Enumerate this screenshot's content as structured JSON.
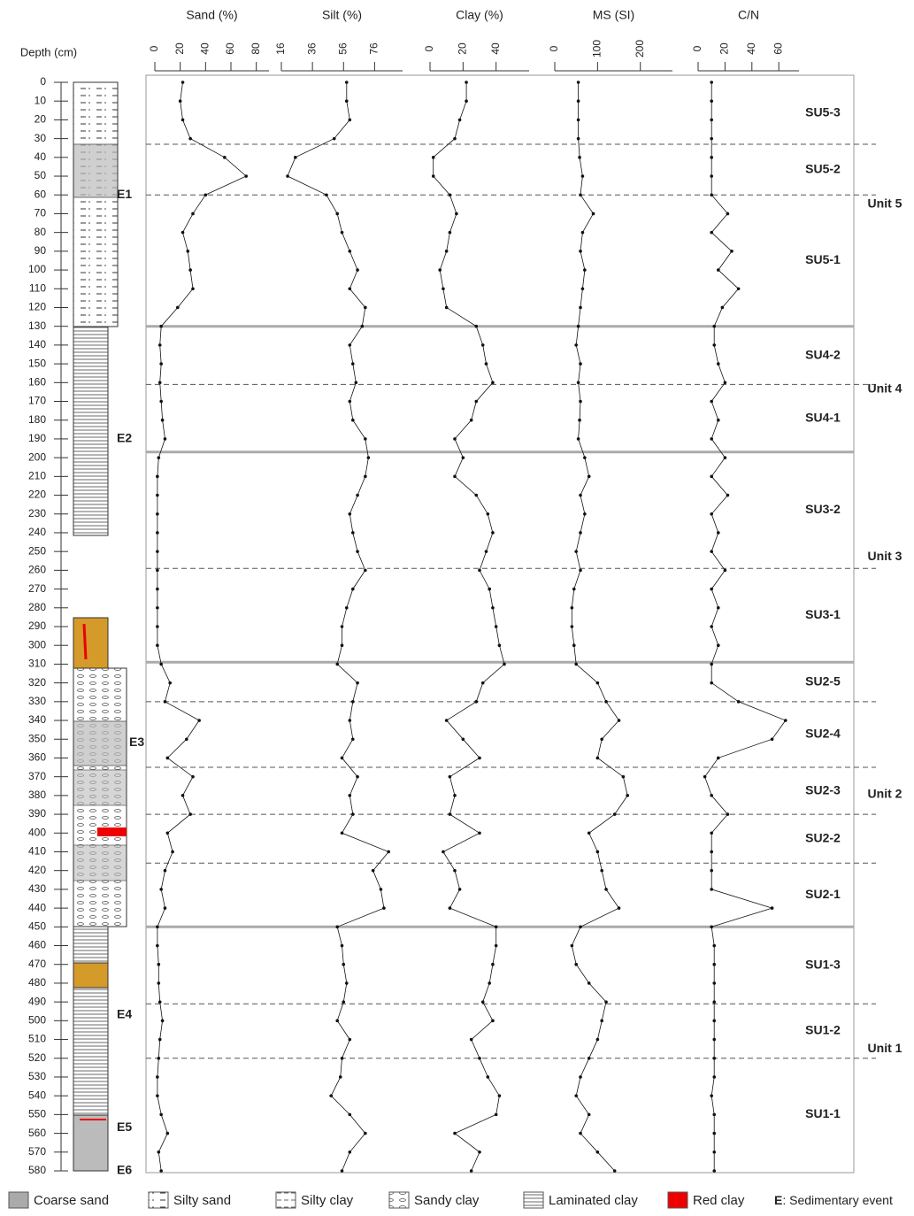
{
  "depth_axis": {
    "label": "Depth (cm)",
    "ylim": [
      0,
      580
    ],
    "yticks": [
      0,
      10,
      20,
      30,
      40,
      50,
      60,
      70,
      80,
      90,
      100,
      110,
      120,
      130,
      140,
      150,
      160,
      170,
      180,
      190,
      200,
      210,
      220,
      230,
      240,
      250,
      260,
      270,
      280,
      290,
      300,
      310,
      320,
      330,
      340,
      350,
      360,
      370,
      380,
      390,
      400,
      410,
      420,
      430,
      440,
      450,
      460,
      470,
      480,
      490,
      500,
      510,
      520,
      530,
      540,
      550,
      560,
      570,
      580
    ]
  },
  "chart_data": [
    {
      "type": "line",
      "xlabel": "Sand (%)",
      "xlim": [
        0,
        90
      ],
      "xticks": [
        0,
        20,
        40,
        60,
        80
      ],
      "color": "#111",
      "y": [
        0,
        10,
        20,
        30,
        40,
        50,
        60,
        70,
        80,
        90,
        100,
        110,
        120,
        130,
        140,
        150,
        160,
        170,
        180,
        190,
        200,
        210,
        220,
        230,
        240,
        250,
        260,
        270,
        280,
        290,
        300,
        310,
        320,
        330,
        340,
        350,
        360,
        370,
        380,
        390,
        400,
        410,
        420,
        430,
        440,
        450,
        460,
        470,
        480,
        490,
        500,
        510,
        520,
        530,
        540,
        550,
        560,
        570,
        580
      ],
      "values": [
        22,
        20,
        22,
        28,
        55,
        72,
        40,
        30,
        22,
        26,
        28,
        30,
        18,
        5,
        4,
        5,
        4,
        5,
        6,
        8,
        3,
        2,
        2,
        2,
        2,
        2,
        2,
        2,
        2,
        2,
        2,
        5,
        12,
        8,
        35,
        25,
        10,
        30,
        22,
        28,
        10,
        14,
        8,
        5,
        8,
        2,
        2,
        3,
        3,
        4,
        6,
        4,
        3,
        2,
        2,
        5,
        10,
        3,
        5
      ]
    },
    {
      "type": "line",
      "xlabel": "Silt (%)",
      "xlim": [
        16,
        94
      ],
      "xticks": [
        16,
        36,
        56,
        76
      ],
      "color": "#111",
      "y": [
        0,
        10,
        20,
        30,
        40,
        50,
        60,
        70,
        80,
        90,
        100,
        110,
        120,
        130,
        140,
        150,
        160,
        170,
        180,
        190,
        200,
        210,
        220,
        230,
        240,
        250,
        260,
        270,
        280,
        290,
        300,
        310,
        320,
        330,
        340,
        350,
        360,
        370,
        380,
        390,
        400,
        410,
        420,
        430,
        440,
        450,
        460,
        470,
        480,
        490,
        500,
        510,
        520,
        530,
        540,
        550,
        560,
        570,
        580
      ],
      "values": [
        58,
        58,
        60,
        50,
        25,
        20,
        45,
        52,
        55,
        60,
        65,
        60,
        70,
        68,
        60,
        62,
        64,
        60,
        62,
        70,
        72,
        70,
        65,
        60,
        62,
        65,
        70,
        62,
        58,
        55,
        55,
        52,
        65,
        62,
        60,
        62,
        55,
        65,
        60,
        62,
        55,
        85,
        75,
        80,
        82,
        52,
        55,
        56,
        58,
        56,
        52,
        60,
        55,
        54,
        48,
        60,
        70,
        60,
        55
      ]
    },
    {
      "type": "line",
      "xlabel": "Clay (%)",
      "xlim": [
        0,
        60
      ],
      "xticks": [
        0,
        20,
        40
      ],
      "color": "#111",
      "y": [
        0,
        10,
        20,
        30,
        40,
        50,
        60,
        70,
        80,
        90,
        100,
        110,
        120,
        130,
        140,
        150,
        160,
        170,
        180,
        190,
        200,
        210,
        220,
        230,
        240,
        250,
        260,
        270,
        280,
        290,
        300,
        310,
        320,
        330,
        340,
        350,
        360,
        370,
        380,
        390,
        400,
        410,
        420,
        430,
        440,
        450,
        460,
        470,
        480,
        490,
        500,
        510,
        520,
        530,
        540,
        550,
        560,
        570,
        580
      ],
      "values": [
        22,
        22,
        18,
        15,
        2,
        2,
        12,
        16,
        12,
        10,
        6,
        8,
        10,
        28,
        32,
        34,
        38,
        28,
        25,
        15,
        20,
        15,
        28,
        35,
        38,
        34,
        30,
        36,
        38,
        40,
        42,
        45,
        32,
        28,
        10,
        20,
        30,
        12,
        15,
        12,
        30,
        8,
        15,
        18,
        12,
        40,
        40,
        38,
        36,
        32,
        38,
        25,
        30,
        35,
        42,
        40,
        15,
        30,
        25
      ]
    },
    {
      "type": "line",
      "xlabel": "MS (SI)",
      "xlim": [
        0,
        275
      ],
      "xticks": [
        0,
        100,
        200
      ],
      "color": "#111",
      "y": [
        0,
        10,
        20,
        30,
        40,
        50,
        60,
        70,
        80,
        90,
        100,
        110,
        120,
        130,
        140,
        150,
        160,
        170,
        180,
        190,
        200,
        210,
        220,
        230,
        240,
        250,
        260,
        270,
        280,
        290,
        300,
        310,
        320,
        330,
        340,
        350,
        360,
        370,
        380,
        390,
        400,
        410,
        420,
        430,
        440,
        450,
        460,
        470,
        480,
        490,
        500,
        510,
        520,
        530,
        540,
        550,
        560,
        570,
        580
      ],
      "values": [
        55,
        55,
        55,
        55,
        58,
        65,
        60,
        90,
        65,
        60,
        70,
        65,
        60,
        55,
        50,
        60,
        55,
        60,
        58,
        55,
        70,
        80,
        60,
        70,
        60,
        50,
        60,
        45,
        40,
        40,
        45,
        50,
        100,
        120,
        150,
        110,
        100,
        160,
        170,
        140,
        80,
        100,
        110,
        120,
        150,
        60,
        40,
        50,
        80,
        120,
        110,
        100,
        80,
        60,
        50,
        80,
        60,
        100,
        140
      ]
    },
    {
      "type": "line",
      "xlabel": "C/N",
      "xlim": [
        0,
        75
      ],
      "xticks": [
        0,
        20,
        40,
        60
      ],
      "color": "#111",
      "y": [
        0,
        10,
        20,
        30,
        40,
        50,
        60,
        70,
        80,
        90,
        100,
        110,
        120,
        130,
        140,
        150,
        160,
        170,
        180,
        190,
        200,
        210,
        220,
        230,
        240,
        250,
        260,
        270,
        280,
        290,
        300,
        310,
        320,
        330,
        340,
        350,
        360,
        370,
        380,
        390,
        400,
        410,
        420,
        430,
        440,
        450,
        460,
        470,
        480,
        490,
        500,
        510,
        520,
        530,
        540,
        550,
        560,
        570,
        580
      ],
      "values": [
        10,
        10,
        10,
        10,
        10,
        10,
        10,
        22,
        10,
        25,
        15,
        30,
        18,
        12,
        12,
        15,
        20,
        10,
        15,
        10,
        20,
        10,
        22,
        10,
        15,
        10,
        20,
        10,
        15,
        10,
        15,
        10,
        10,
        30,
        65,
        55,
        15,
        5,
        10,
        22,
        10,
        10,
        10,
        10,
        55,
        10,
        12,
        12,
        12,
        12,
        12,
        12,
        12,
        12,
        10,
        12,
        12,
        12,
        12
      ]
    }
  ],
  "zones": {
    "subunits": [
      {
        "label": "SU5-3",
        "top": 0,
        "bottom": 33
      },
      {
        "label": "SU5-2",
        "top": 33,
        "bottom": 60
      },
      {
        "label": "SU5-1",
        "top": 60,
        "bottom": 130
      },
      {
        "label": "SU4-2",
        "top": 130,
        "bottom": 161
      },
      {
        "label": "SU4-1",
        "top": 161,
        "bottom": 197
      },
      {
        "label": "SU3-2",
        "top": 197,
        "bottom": 259
      },
      {
        "label": "SU3-1",
        "top": 259,
        "bottom": 309
      },
      {
        "label": "SU2-5",
        "top": 309,
        "bottom": 330
      },
      {
        "label": "SU2-4",
        "top": 330,
        "bottom": 365
      },
      {
        "label": "SU2-3",
        "top": 365,
        "bottom": 390
      },
      {
        "label": "SU2-2",
        "top": 390,
        "bottom": 416
      },
      {
        "label": "SU2-1",
        "top": 416,
        "bottom": 450
      },
      {
        "label": "SU1-3",
        "top": 450,
        "bottom": 491
      },
      {
        "label": "SU1-2",
        "top": 491,
        "bottom": 520
      },
      {
        "label": "SU1-1",
        "top": 520,
        "bottom": 580
      }
    ],
    "units": [
      {
        "label": "Unit 5",
        "top": 0,
        "bottom": 130
      },
      {
        "label": "Unit 4",
        "top": 130,
        "bottom": 197
      },
      {
        "label": "Unit 3",
        "top": 197,
        "bottom": 309
      },
      {
        "label": "Unit 2",
        "top": 309,
        "bottom": 450
      },
      {
        "label": "Unit 1",
        "top": 450,
        "bottom": 580
      }
    ]
  },
  "events": [
    {
      "label": "E1",
      "depth": 60
    },
    {
      "label": "E2",
      "depth": 190
    },
    {
      "label": "E3",
      "depth": 352
    },
    {
      "label": "E4",
      "depth": 497
    },
    {
      "label": "E5",
      "depth": 557
    },
    {
      "label": "E6",
      "depth": 580
    }
  ],
  "legend": {
    "items": [
      "Coarse sand",
      "Silty sand",
      "Silty clay",
      "Sandy clay",
      "Laminated clay",
      "Red clay"
    ],
    "event_key": "E",
    "event_text": ": Sedimentary event"
  }
}
